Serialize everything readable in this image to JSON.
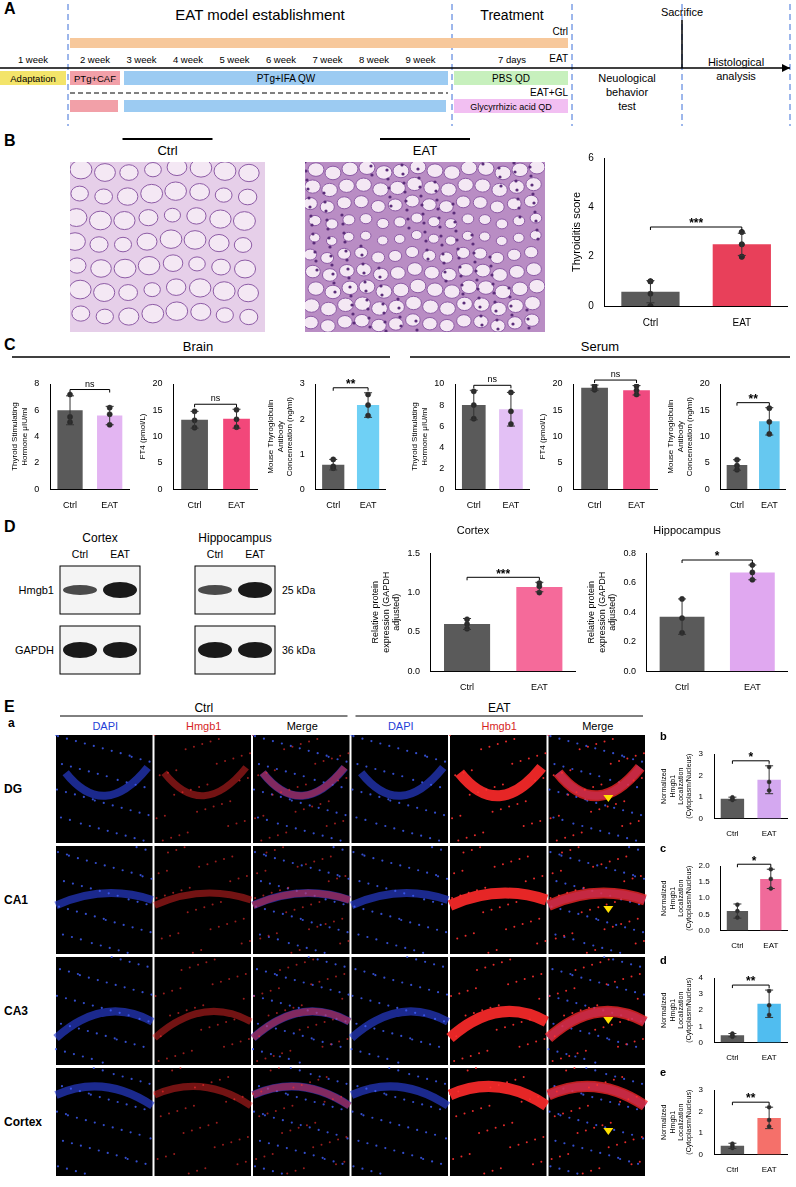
{
  "figure": {
    "A": {
      "label": "A",
      "phases": [
        "EAT model establishment",
        "Treatment"
      ],
      "sacrifice": "Sacrifice",
      "groups": [
        "Ctrl",
        "EAT",
        "EAT+GL"
      ],
      "weeks": [
        "1 week",
        "2 week",
        "3 week",
        "4 week",
        "5 week",
        "6 week",
        "7 week",
        "8 week",
        "9 week"
      ],
      "treatment_period": "7 days",
      "steps": {
        "adaptation": "Adaptation",
        "immunization": "PTg+CAF",
        "boost": "PTg+IFA QW",
        "vehicle": "PBS QD",
        "drug": "Glycyrrhizic acid QD"
      },
      "endpoints": [
        "Neuological behavior test",
        "Histological analysis"
      ]
    },
    "B": {
      "label": "B",
      "images": [
        "Ctrl",
        "EAT"
      ]
    },
    "C": {
      "label": "C",
      "groups": [
        "Brain",
        "Serum"
      ]
    },
    "D": {
      "label": "D",
      "regions": [
        "Cortex",
        "Hippocampus"
      ],
      "lanes": [
        "Ctrl",
        "EAT"
      ],
      "bands": [
        {
          "name": "Hmgb1",
          "size": "25 kDa"
        },
        {
          "name": "GAPDH",
          "size": "36 kDa"
        }
      ]
    },
    "E": {
      "label": "E",
      "sublabel": "a",
      "groups": [
        "Ctrl",
        "EAT"
      ],
      "channels": [
        "DAPI",
        "Hmgb1",
        "Merge"
      ],
      "rows": [
        "DG",
        "CA1",
        "CA3",
        "Cortex"
      ]
    }
  },
  "chart_data": [
    {
      "type": "bar",
      "y_label": "Thyroiditis score",
      "categories": [
        "Ctrl",
        "EAT"
      ],
      "values": [
        0.58,
        2.5
      ],
      "errors": [
        0.45,
        0.45
      ],
      "points": [
        [
          1,
          1,
          0.5,
          0,
          0,
          1
        ],
        [
          2,
          2,
          2.5,
          3,
          2.5,
          3
        ]
      ],
      "significance": "***",
      "colors": [
        "#5a5a5a",
        "#e8405a"
      ],
      "ylim": [
        0,
        6
      ],
      "yticks": [
        0,
        2,
        4,
        6
      ],
      "grid": false
    },
    {
      "type": "bar",
      "y_label": "Thyroid Stimulating Hormone μIU/ml",
      "categories": [
        "Ctrl",
        "EAT"
      ],
      "values": [
        6.0,
        5.6
      ],
      "errors": [
        1.1,
        0.7
      ],
      "points": [
        [
          7.2,
          5.1,
          5.5
        ],
        [
          6.2,
          4.9,
          5.7
        ]
      ],
      "significance": "ns",
      "colors": [
        "#5a5a5a",
        "#e3b5f2"
      ],
      "ylim": [
        0,
        8
      ],
      "yticks": [
        0,
        2,
        4,
        6,
        8
      ],
      "grid": false
    },
    {
      "type": "bar",
      "y_label": "FT4 (pmol/L)",
      "categories": [
        "Ctrl",
        "EAT"
      ],
      "values": [
        13.2,
        13.4
      ],
      "errors": [
        1.6,
        1.8
      ],
      "points": [
        [
          14.8,
          11.7,
          13.1
        ],
        [
          15.1,
          11.8,
          13.3
        ]
      ],
      "significance": "ns",
      "colors": [
        "#5a5a5a",
        "#f2477a"
      ],
      "ylim": [
        0,
        20
      ],
      "yticks": [
        0,
        5,
        10,
        15,
        20
      ],
      "grid": false
    },
    {
      "type": "bar",
      "y_label": "Mouse Thyroglobulin Antibody Concenreation (ng/ml)",
      "categories": [
        "Ctrl",
        "EAT"
      ],
      "values": [
        0.7,
        2.4
      ],
      "errors": [
        0.15,
        0.35
      ],
      "points": [
        [
          0.85,
          0.6,
          0.65
        ],
        [
          2.7,
          2.1,
          2.4
        ]
      ],
      "significance": "**",
      "colors": [
        "#5a5a5a",
        "#6fd0f5"
      ],
      "ylim": [
        0,
        3
      ],
      "yticks": [
        0,
        1,
        2,
        3
      ],
      "grid": false
    },
    {
      "type": "bar",
      "y_label": "Thyroid Stimulating Hormone μIU/ml",
      "categories": [
        "Ctrl",
        "EAT"
      ],
      "values": [
        8.0,
        7.6
      ],
      "errors": [
        1.4,
        1.6
      ],
      "points": [
        [
          9.3,
          6.7,
          8.0
        ],
        [
          9.2,
          6.2,
          7.4
        ]
      ],
      "significance": "ns",
      "colors": [
        "#5a5a5a",
        "#e3c0f5"
      ],
      "ylim": [
        0,
        10
      ],
      "yticks": [
        0,
        2,
        4,
        6,
        8,
        10
      ],
      "grid": false
    },
    {
      "type": "bar",
      "y_label": "FT4 (pmol/L)",
      "categories": [
        "Ctrl",
        "EAT"
      ],
      "values": [
        19.3,
        18.8
      ],
      "errors": [
        0.5,
        0.9
      ],
      "points": [
        [
          19.7,
          18.9,
          19.3
        ],
        [
          19.6,
          18.0,
          18.8
        ]
      ],
      "significance": "ns",
      "colors": [
        "#5a5a5a",
        "#f04a80"
      ],
      "ylim": [
        0,
        20
      ],
      "yticks": [
        0,
        5,
        10,
        15,
        20
      ],
      "grid": false
    },
    {
      "type": "bar",
      "y_label": "Mouse Thyroglobulin Antibody Concenreation (ng/ml)",
      "categories": [
        "Ctrl",
        "EAT"
      ],
      "values": [
        4.6,
        12.9
      ],
      "errors": [
        1.0,
        2.6
      ],
      "points": [
        [
          5.6,
          3.7,
          4.5
        ],
        [
          15.4,
          10.5,
          12.8
        ]
      ],
      "significance": "**",
      "colors": [
        "#5a5a5a",
        "#66c8f0"
      ],
      "ylim": [
        0,
        20
      ],
      "yticks": [
        0,
        5,
        10,
        15,
        20
      ],
      "grid": false
    },
    {
      "type": "bar",
      "title": "Cortex",
      "y_label": "Relative protein expression (GAPDH adjusted)",
      "categories": [
        "Ctrl",
        "EAT"
      ],
      "values": [
        0.6,
        1.07
      ],
      "errors": [
        0.07,
        0.06
      ],
      "points": [
        [
          0.66,
          0.54,
          0.6
        ],
        [
          1.12,
          1.0,
          1.08
        ]
      ],
      "significance": "***",
      "colors": [
        "#5a5a5a",
        "#f56a9a"
      ],
      "ylim": [
        0,
        1.5
      ],
      "yticks": [
        {
          "value": 0,
          "label": "0.0"
        },
        0.5,
        {
          "value": 1,
          "label": "1.0"
        },
        1.5
      ],
      "grid": false
    },
    {
      "type": "bar",
      "title": "Hippocampus",
      "y_label": "Relative protein expression (GAPDH adjusted)",
      "categories": [
        "Ctrl",
        "EAT"
      ],
      "values": [
        0.37,
        0.67
      ],
      "errors": [
        0.12,
        0.05
      ],
      "points": [
        [
          0.49,
          0.26,
          0.36
        ],
        [
          0.72,
          0.62,
          0.67
        ]
      ],
      "significance": "*",
      "colors": [
        "#5a5a5a",
        "#e0a8f0"
      ],
      "ylim": [
        0,
        0.8
      ],
      "yticks": [
        {
          "value": 0,
          "label": "0.0"
        },
        0.2,
        0.4,
        0.6,
        0.8
      ],
      "grid": false
    },
    {
      "type": "bar",
      "panel_label": "b",
      "y_label": "Normalized Hmgb1 Localization (Cytoplasm/Nucleus)",
      "categories": [
        "Ctrl",
        "EAT"
      ],
      "values": [
        0.92,
        1.8
      ],
      "errors": [
        0.07,
        0.65
      ],
      "points": [
        [
          0.98,
          0.86,
          0.92
        ],
        [
          2.4,
          1.3,
          1.7
        ]
      ],
      "significance": "*",
      "colors": [
        "#5a5a5a",
        "#d4a8f0"
      ],
      "ylim": [
        0,
        3
      ],
      "yticks": [
        0,
        1,
        2,
        3
      ],
      "grid": false
    },
    {
      "type": "bar",
      "panel_label": "c",
      "y_label": "Normalized Hmgb1 Localization (Cytoplasm/Nucleus)",
      "categories": [
        "Ctrl",
        "EAT"
      ],
      "values": [
        0.6,
        1.6
      ],
      "errors": [
        0.22,
        0.3
      ],
      "points": [
        [
          0.8,
          0.4,
          0.6
        ],
        [
          1.9,
          1.3,
          1.6
        ]
      ],
      "significance": "*",
      "colors": [
        "#5a5a5a",
        "#f06a9a"
      ],
      "ylim": [
        0,
        2
      ],
      "yticks": [
        {
          "value": 0,
          "label": "0.0"
        },
        0.5,
        {
          "value": 1,
          "label": "1.0"
        },
        1.5,
        {
          "value": 2,
          "label": "2.0"
        }
      ],
      "grid": false
    },
    {
      "type": "bar",
      "panel_label": "d",
      "y_label": "Normalized Hmgb1 Localization (Cytoplasm/Nucleus)",
      "categories": [
        "Ctrl",
        "EAT"
      ],
      "values": [
        0.45,
        2.4
      ],
      "errors": [
        0.1,
        0.85
      ],
      "points": [
        [
          0.55,
          0.35,
          0.45
        ],
        [
          3.2,
          1.7,
          2.3
        ]
      ],
      "significance": "**",
      "colors": [
        "#5a5a5a",
        "#50bdf0"
      ],
      "ylim": [
        0,
        4
      ],
      "yticks": [
        0,
        1,
        2,
        3,
        4
      ],
      "grid": false
    },
    {
      "type": "bar",
      "panel_label": "e",
      "y_label": "Normalized Hmgb1 Localization (Cytoplasm/Nucleus)",
      "categories": [
        "Ctrl",
        "EAT"
      ],
      "values": [
        0.4,
        1.7
      ],
      "errors": [
        0.12,
        0.5
      ],
      "points": [
        [
          0.5,
          0.3,
          0.4
        ],
        [
          2.2,
          1.3,
          1.6
        ]
      ],
      "significance": "**",
      "colors": [
        "#5a5a5a",
        "#f5706a"
      ],
      "ylim": [
        0,
        3
      ],
      "yticks": [
        0,
        1,
        2,
        3
      ],
      "grid": false
    }
  ]
}
